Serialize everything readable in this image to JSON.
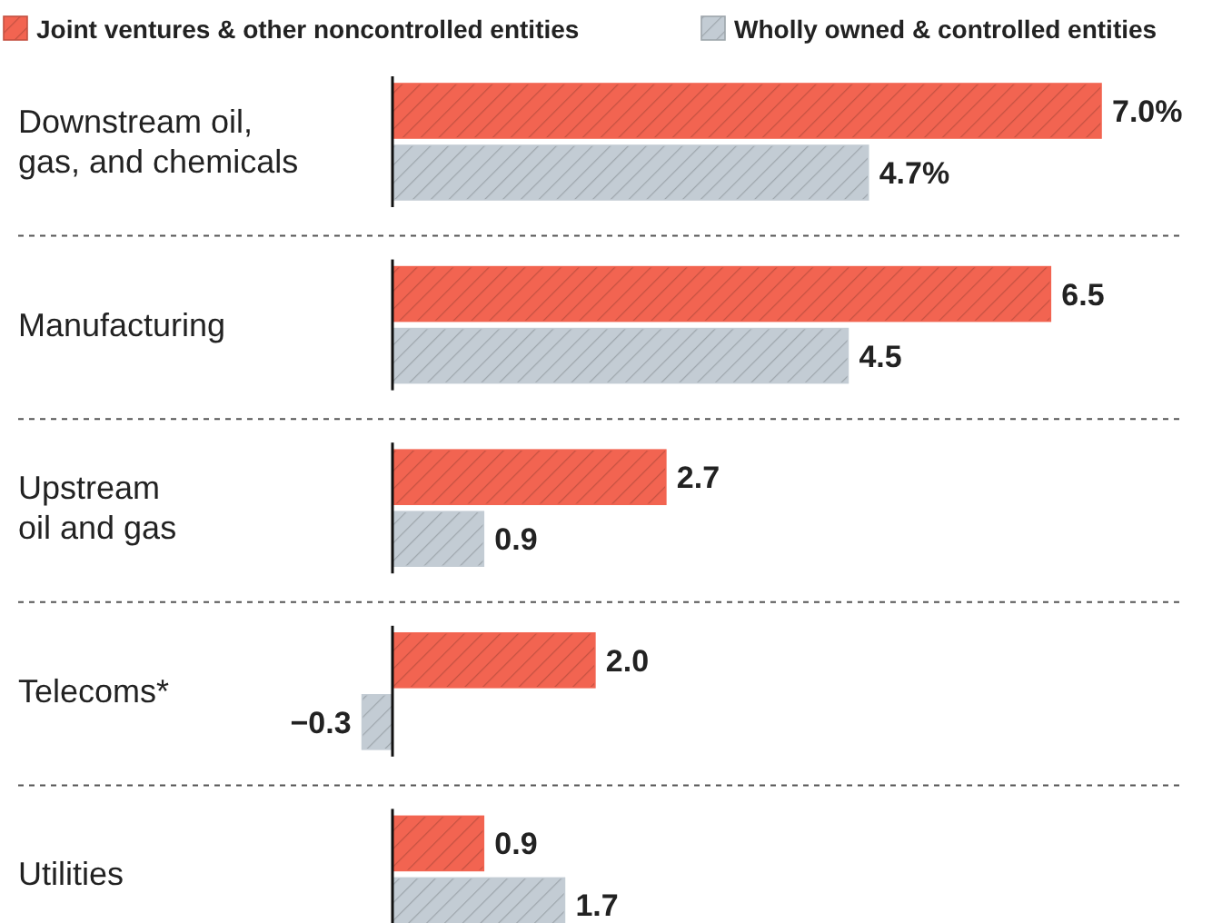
{
  "chart_data": {
    "type": "bar",
    "orientation": "horizontal",
    "legend": "top left",
    "categories": [
      "Downstream oil,\ngas, and chemicals",
      "Manufacturing",
      "Upstream\noil and gas",
      "Telecoms*",
      "Utilities"
    ],
    "series": [
      {
        "name": "Joint ventures & other noncontrolled entities",
        "color": "#f26451",
        "values": [
          7.0,
          6.5,
          2.7,
          2.0,
          0.9
        ],
        "value_labels": [
          "7.0%",
          "6.5",
          "2.7",
          "2.0",
          "0.9"
        ]
      },
      {
        "name": "Wholly owned & controlled entities",
        "color": "#c3ccd4",
        "values": [
          4.7,
          4.5,
          0.9,
          -0.3,
          1.7
        ],
        "value_labels": [
          "4.7%",
          "4.5",
          "0.9",
          "−0.3",
          "1.7"
        ]
      }
    ]
  }
}
